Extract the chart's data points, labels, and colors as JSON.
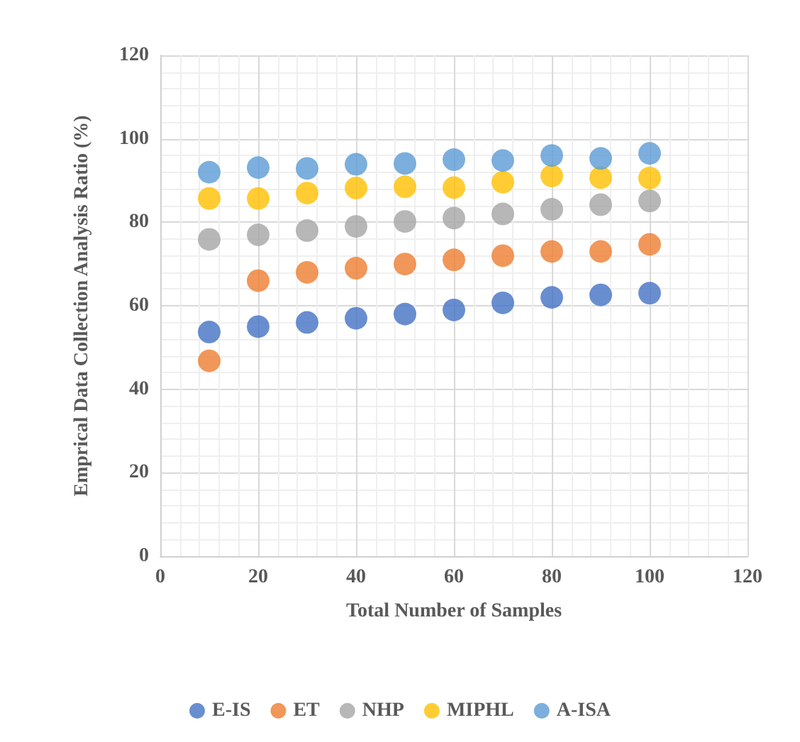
{
  "chart_data": {
    "type": "scatter",
    "xlabel": "Total Number of Samples",
    "ylabel": "Emprical Data Collection Analysis Ratio (%)",
    "x": [
      10,
      20,
      30,
      40,
      50,
      60,
      70,
      80,
      90,
      100
    ],
    "series": [
      {
        "name": "E-IS",
        "color": "#4472c4",
        "values": [
          53.7,
          55,
          56,
          57,
          58,
          59,
          60.7,
          62,
          62.6,
          63
        ]
      },
      {
        "name": "ET",
        "color": "#ed7d31",
        "values": [
          46.8,
          66,
          68,
          69,
          70,
          71,
          72,
          73,
          73,
          74.7
        ]
      },
      {
        "name": "NHP",
        "color": "#a5a5a5",
        "values": [
          75.9,
          77,
          78,
          79,
          80.2,
          81,
          82,
          83.1,
          84.2,
          85.1
        ]
      },
      {
        "name": "MIPHL",
        "color": "#ffc000",
        "values": [
          85.7,
          85.7,
          87,
          88.2,
          88.5,
          88.3,
          89.6,
          91.1,
          90.7,
          90.6
        ]
      },
      {
        "name": "A-ISA",
        "color": "#5b9bd5",
        "values": [
          92,
          93.1,
          92.9,
          93.9,
          94.1,
          95,
          94.8,
          96,
          95.3,
          96.5
        ]
      }
    ],
    "xlim": [
      0,
      120
    ],
    "xticks": [
      0,
      20,
      40,
      60,
      80,
      100,
      120
    ],
    "ylim": [
      0,
      120
    ],
    "yticks": [
      0,
      20,
      40,
      60,
      80,
      100,
      120
    ],
    "grid": true,
    "legend": "bottom",
    "marker": "circle"
  }
}
